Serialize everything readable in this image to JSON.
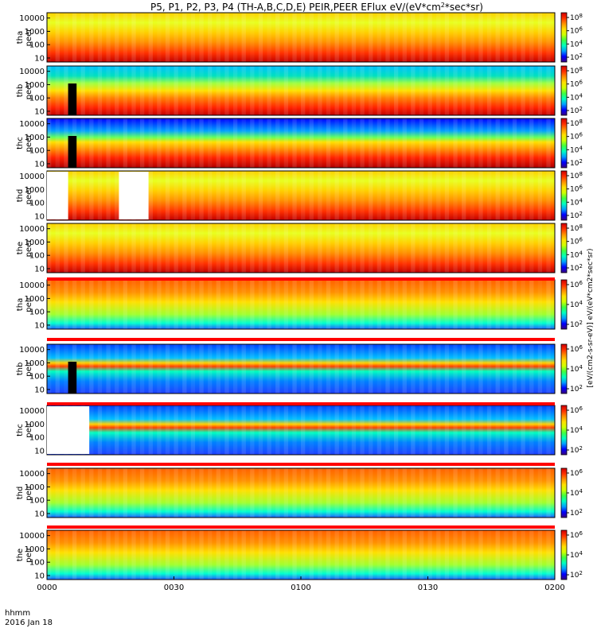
{
  "chart_data": {
    "type": "heatmap",
    "title_parts": [
      "P5, P1, P2, P3, P4 (TH-A,B,C,D,E) PEIR,PEER EFlux eV/(eV*cm",
      "2",
      "*sec*sr)"
    ],
    "xlabel": "hhmm",
    "date_label": "2016 Jan 18",
    "x_ticks": [
      "0000",
      "0030",
      "0100",
      "0130",
      "0200"
    ],
    "xlim_minutes": [
      0,
      120
    ],
    "y_scale": "log",
    "y_ticks": [
      "10",
      "100",
      "1000",
      "10000"
    ],
    "ylim_eV": [
      5,
      25000
    ],
    "colorbar_unit": "eV/(eV*cm2*sec*sr)",
    "colorscale": [
      "#3a0080",
      "#0000ff",
      "#00a0ff",
      "#00ffc0",
      "#40ff40",
      "#d0ff00",
      "#ffe000",
      "#ff9000",
      "#ff3000",
      "#d00000"
    ],
    "panels": [
      {
        "id": "tha-peer",
        "probe": "tha",
        "species": "peer",
        "cb_ticks": [
          "10^8",
          "10^6",
          "10^4",
          "10^2"
        ]
      },
      {
        "id": "thb-peer",
        "probe": "thb",
        "species": "peer",
        "cb_ticks": [
          "10^8",
          "10^6",
          "10^4",
          "10^2"
        ]
      },
      {
        "id": "thc-peer",
        "probe": "thc",
        "species": "peer",
        "cb_ticks": [
          "10^8",
          "10^6",
          "10^4",
          "10^2"
        ]
      },
      {
        "id": "thd-peer",
        "probe": "thd",
        "species": "peer",
        "cb_ticks": [
          "10^8",
          "10^6",
          "10^4",
          "10^2"
        ]
      },
      {
        "id": "the-peer",
        "probe": "the",
        "species": "peer",
        "cb_ticks": [
          "10^8",
          "10^6",
          "10^4",
          "10^2"
        ]
      },
      {
        "id": "tha-peir",
        "probe": "tha",
        "species": "peir",
        "cb_ticks": [
          "10^6",
          "10^4",
          "10^2"
        ]
      },
      {
        "id": "thb-peir",
        "probe": "thb",
        "species": "peir",
        "cb_ticks": [
          "10^6",
          "10^4",
          "10^2"
        ]
      },
      {
        "id": "thc-peir",
        "probe": "thc",
        "species": "peir",
        "cb_ticks": [
          "10^6",
          "10^4",
          "10^2"
        ]
      },
      {
        "id": "thd-peir",
        "probe": "thd",
        "species": "peir",
        "cb_ticks": [
          "10^6",
          "10^4",
          "10^2"
        ]
      },
      {
        "id": "the-peir",
        "probe": "the",
        "species": "peir",
        "cb_ticks": [
          "10^6",
          "10^4",
          "10^2"
        ]
      }
    ]
  }
}
